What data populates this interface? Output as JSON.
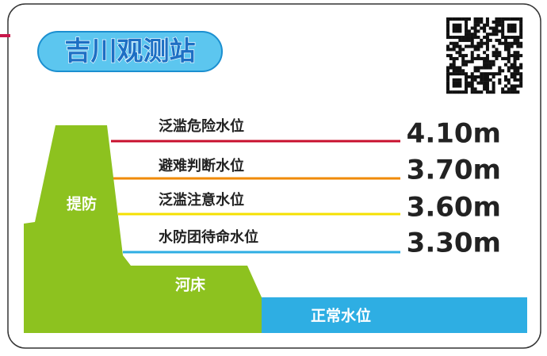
{
  "header": {
    "title": "吉川观测站"
  },
  "levels": [
    {
      "label": "泛滥危险水位",
      "value": "4.10m"
    },
    {
      "label": "避难判断水位",
      "value": "3.70m"
    },
    {
      "label": "泛滥注意水位",
      "value": "3.60m"
    },
    {
      "label": "水防团待命水位",
      "value": "3.30m"
    }
  ],
  "diagram": {
    "levee": "提防",
    "riverbed": "河床",
    "normal_level": "正常水位"
  }
}
